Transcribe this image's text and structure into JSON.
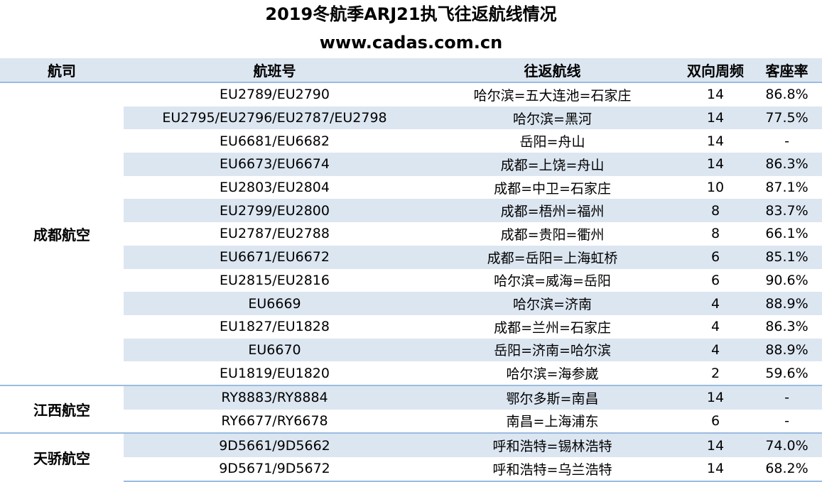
{
  "title": "2019冬航季ARJ21执飞往返航线情况",
  "subtitle": "www.cadas.com.cn",
  "headers": [
    "航司",
    "航班号",
    "往返航线",
    "双向周频",
    "客座率"
  ],
  "groups": [
    {
      "airline": "成都航空",
      "rows": [
        {
          "flight": "EU2789/EU2790",
          "route": "哈尔滨=五大连池=石家庄",
          "freq": "14",
          "load": "86.8%"
        },
        {
          "flight": "EU2795/EU2796/EU2787/EU2798",
          "route": "哈尔滨=黑河",
          "freq": "14",
          "load": "77.5%"
        },
        {
          "flight": "EU6681/EU6682",
          "route": "岳阳=舟山",
          "freq": "14",
          "load": "-"
        },
        {
          "flight": "EU6673/EU6674",
          "route": "成都=上饶=舟山",
          "freq": "14",
          "load": "86.3%"
        },
        {
          "flight": "EU2803/EU2804",
          "route": "成都=中卫=石家庄",
          "freq": "10",
          "load": "87.1%"
        },
        {
          "flight": "EU2799/EU2800",
          "route": "成都=梧州=福州",
          "freq": "8",
          "load": "83.7%"
        },
        {
          "flight": "EU2787/EU2788",
          "route": "成都=贵阳=衢州",
          "freq": "8",
          "load": "66.1%"
        },
        {
          "flight": "EU6671/EU6672",
          "route": "成都=岳阳=上海虹桥",
          "freq": "6",
          "load": "85.1%"
        },
        {
          "flight": "EU2815/EU2816",
          "route": "哈尔滨=威海=岳阳",
          "freq": "6",
          "load": "90.6%"
        },
        {
          "flight": "EU6669",
          "route": "哈尔滨=济南",
          "freq": "4",
          "load": "88.9%"
        },
        {
          "flight": "EU1827/EU1828",
          "route": "成都=兰州=石家庄",
          "freq": "4",
          "load": "86.3%"
        },
        {
          "flight": "EU6670",
          "route": "岳阳=济南=哈尔滨",
          "freq": "4",
          "load": "88.9%"
        },
        {
          "flight": "EU1819/EU1820",
          "route": "哈尔滨=海参崴",
          "freq": "2",
          "load": "59.6%"
        }
      ]
    },
    {
      "airline": "江西航空",
      "rows": [
        {
          "flight": "RY8883/RY8884",
          "route": "鄂尔多斯=南昌",
          "freq": "14",
          "load": "-"
        },
        {
          "flight": "RY6677/RY6678",
          "route": "南昌=上海浦东",
          "freq": "6",
          "load": "-"
        }
      ]
    },
    {
      "airline": "天骄航空",
      "rows": [
        {
          "flight": "9D5661/9D5662",
          "route": "呼和浩特=锡林浩特",
          "freq": "14",
          "load": "74.0%"
        },
        {
          "flight": "9D5671/9D5672",
          "route": "呼和浩特=乌兰浩特",
          "freq": "14",
          "load": "68.2%"
        }
      ]
    }
  ],
  "colors": {
    "header_bg": "#dce6f1",
    "band_bg": "#dce6f1",
    "rule": "#9bbce0"
  }
}
